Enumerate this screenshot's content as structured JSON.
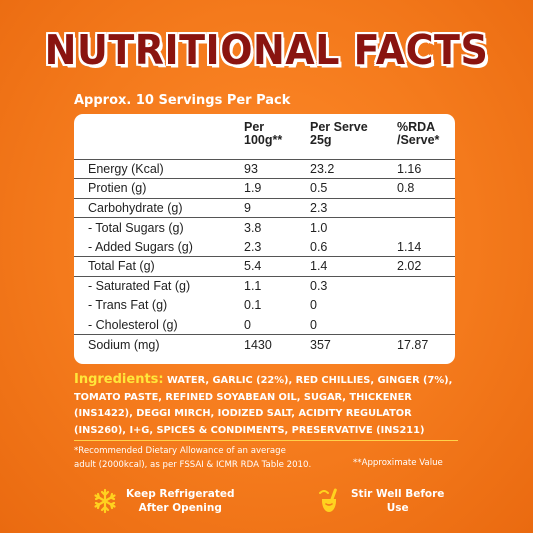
{
  "title": "NUTRITIONAL FACTS",
  "servings": "Approx. 10 Servings Per Pack",
  "table": {
    "headers": {
      "col1": [
        "Per",
        "100g**"
      ],
      "col2": [
        "Per Serve",
        "25g"
      ],
      "col3": [
        "%RDA",
        "/Serve*"
      ]
    },
    "rows": [
      {
        "label": "Energy (Kcal)",
        "per100": "93",
        "perServe": "23.2",
        "rda": "1.16",
        "sep": true
      },
      {
        "label": "Protien (g)",
        "per100": "1.9",
        "perServe": "0.5",
        "rda": "0.8",
        "sep": true
      },
      {
        "label": "Carbohydrate (g)",
        "per100": "9",
        "perServe": "2.3",
        "rda": "",
        "sep": true
      },
      {
        "label": "- Total Sugars (g)",
        "per100": "3.8",
        "perServe": "1.0",
        "rda": "",
        "sep": true
      },
      {
        "label": "- Added Sugars (g)",
        "per100": "2.3",
        "perServe": "0.6",
        "rda": "1.14",
        "sep": false
      },
      {
        "label": "Total Fat (g)",
        "per100": "5.4",
        "perServe": "1.4",
        "rda": "2.02",
        "sep": true
      },
      {
        "label": "- Saturated Fat (g)",
        "per100": "1.1",
        "perServe": "0.3",
        "rda": "",
        "sep": true
      },
      {
        "label": "- Trans Fat (g)",
        "per100": "0.1",
        "perServe": "0",
        "rda": "",
        "sep": false
      },
      {
        "label": "- Cholesterol (g)",
        "per100": "0",
        "perServe": "0",
        "rda": "",
        "sep": false
      },
      {
        "label": "Sodium (mg)",
        "per100": "1430",
        "perServe": "357",
        "rda": "17.87",
        "sep": true
      }
    ]
  },
  "ingredients": {
    "label": "Ingredients:",
    "text": " WATER, GARLIC (22%), RED CHILLIES, GINGER (7%), TOMATO PASTE, REFINED SOYABEAN OIL, SUGAR, THICKENER (INS1422), DEGGI MIRCH, IODIZED SALT, ACIDITY REGULATOR (INS260), I+G, SPICES & CONDIMENTS, PRESERVATIVE (INS211)"
  },
  "footnote": {
    "line1": "*Recommended Dietary Allowance of an average",
    "line2": "adult (2000kcal), as per FSSAI & ICMR RDA Table 2010.",
    "approx": "**Approximate Value"
  },
  "badges": {
    "left": {
      "icon": "snowflake-icon",
      "line1": "Keep Refrigerated",
      "line2": "After Opening"
    },
    "right": {
      "icon": "stir-jar-icon",
      "line1": "Stir Well Before",
      "line2": "Use"
    }
  },
  "colors": {
    "background": "#f47a1c",
    "title": "#8a1410",
    "ingredientsLabel": "#ffe63a",
    "icon": "#ffd21f"
  }
}
